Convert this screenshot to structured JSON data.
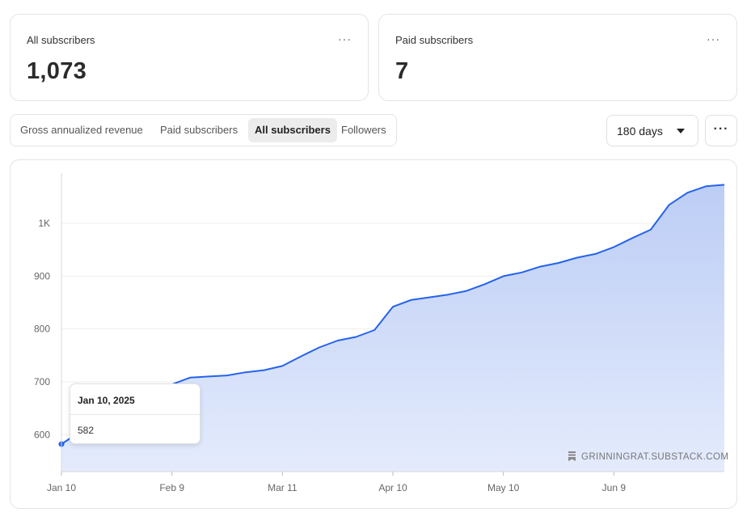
{
  "stats": {
    "all": {
      "label": "All subscribers",
      "value": "1,073",
      "menu": "···"
    },
    "paid": {
      "label": "Paid subscribers",
      "value": "7",
      "menu": "···"
    }
  },
  "tabs": [
    {
      "label": "Gross annualized revenue",
      "active": false
    },
    {
      "label": "Paid subscribers",
      "active": false
    },
    {
      "label": "All subscribers",
      "active": true
    },
    {
      "label": "Followers",
      "active": false
    }
  ],
  "range": {
    "selected": "180 days",
    "icon": "caret-down-icon"
  },
  "more_menu": {
    "label": "···",
    "icon": "more-horizontal-icon"
  },
  "tooltip": {
    "date": "Jan 10, 2025",
    "value": "582"
  },
  "watermark": {
    "text": "GRINNINGRAT.SUBSTACK.COM",
    "icon": "substack-bookmark-icon"
  },
  "colors": {
    "line": "#2563eb",
    "area_top": "#bccdf5",
    "area_bottom": "#e4ebfc",
    "grid": "#efefef"
  },
  "chart_data": {
    "type": "area",
    "series": [
      {
        "x": [
          "2025-01-10",
          "2025-01-15",
          "2025-01-20",
          "2025-01-25",
          "2025-01-30",
          "2025-02-04",
          "2025-02-09",
          "2025-02-14",
          "2025-02-19",
          "2025-02-24",
          "2025-03-01",
          "2025-03-06",
          "2025-03-11",
          "2025-03-16",
          "2025-03-21",
          "2025-03-26",
          "2025-03-31",
          "2025-04-05",
          "2025-04-10",
          "2025-04-15",
          "2025-04-20",
          "2025-04-25",
          "2025-04-30",
          "2025-05-05",
          "2025-05-10",
          "2025-05-15",
          "2025-05-20",
          "2025-05-25",
          "2025-05-30",
          "2025-06-04",
          "2025-06-09",
          "2025-06-14",
          "2025-06-19",
          "2025-06-24",
          "2025-06-29",
          "2025-07-04",
          "2025-07-09"
        ],
        "values": [
          582,
          605,
          625,
          645,
          662,
          680,
          695,
          708,
          710,
          712,
          718,
          722,
          730,
          748,
          765,
          778,
          785,
          798,
          842,
          855,
          860,
          865,
          872,
          885,
          900,
          907,
          918,
          925,
          935,
          942,
          955,
          972,
          988,
          1035,
          1058,
          1070,
          1073
        ]
      }
    ],
    "x_ticks": [
      "Jan 10",
      "Feb 9",
      "Mar 11",
      "Apr 10",
      "May 10",
      "Jun 9"
    ],
    "y_ticks": [
      "600",
      "700",
      "800",
      "900",
      "1K"
    ],
    "ylim": [
      530,
      1095
    ],
    "grid": true
  }
}
